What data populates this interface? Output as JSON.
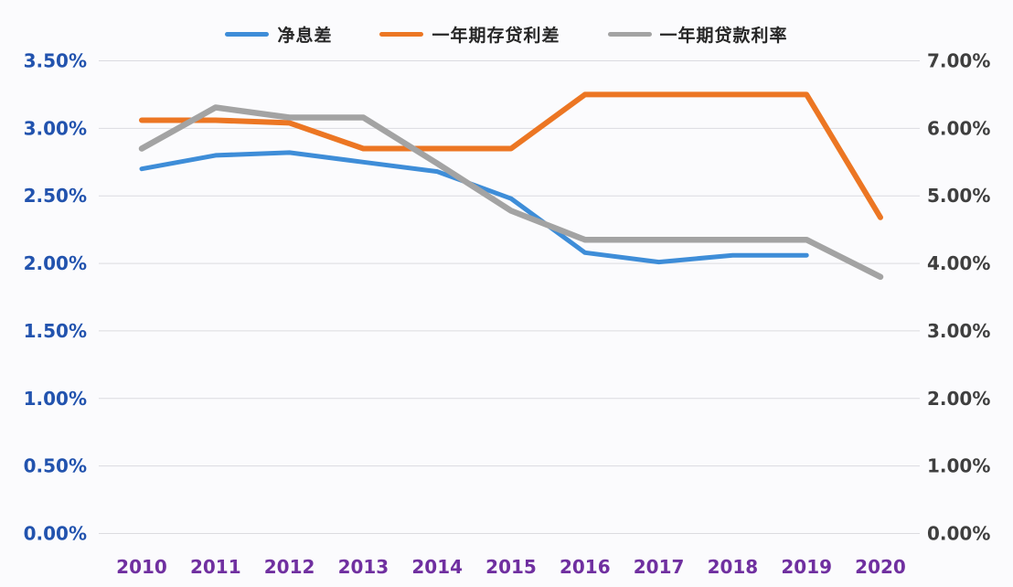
{
  "chart_data": {
    "type": "line",
    "title": "",
    "x": [
      "2010",
      "2011",
      "2012",
      "2013",
      "2014",
      "2015",
      "2016",
      "2017",
      "2018",
      "2019",
      "2020"
    ],
    "series": [
      {
        "name": "净息差",
        "axis": "left",
        "color": "#3E8DD8",
        "values": [
          2.7,
          2.8,
          2.82,
          2.75,
          2.68,
          2.48,
          2.08,
          2.01,
          2.06,
          2.06,
          null
        ]
      },
      {
        "name": "一年期存贷利差",
        "axis": "left",
        "color": "#EC7623",
        "values": [
          3.06,
          3.06,
          3.04,
          2.85,
          2.85,
          2.85,
          3.25,
          3.25,
          3.25,
          3.25,
          2.34
        ]
      },
      {
        "name": "一年期贷款利率",
        "axis": "right",
        "color": "#A3A3A3",
        "values": [
          5.7,
          6.31,
          6.16,
          6.16,
          5.48,
          4.78,
          4.35,
          4.35,
          4.35,
          4.35,
          3.8
        ]
      }
    ],
    "left_axis": {
      "min": 0,
      "max": 3.5,
      "step": 0.5,
      "tick_labels": [
        "3.50%",
        "3.00%",
        "2.50%",
        "2.00%",
        "1.50%",
        "1.00%",
        "0.50%",
        "0.00%"
      ],
      "color": "#2253AE"
    },
    "right_axis": {
      "min": 0,
      "max": 7,
      "step": 1,
      "tick_labels": [
        "7.00%",
        "6.00%",
        "5.00%",
        "4.00%",
        "3.00%",
        "2.00%",
        "1.00%",
        "0.00%"
      ],
      "color": "#3F3F3F"
    },
    "x_axis": {
      "color": "#7030A0"
    },
    "grid": {
      "on": true,
      "color": "#DBDBE0"
    },
    "legend_position": "top",
    "background": "#FBFBFD"
  }
}
